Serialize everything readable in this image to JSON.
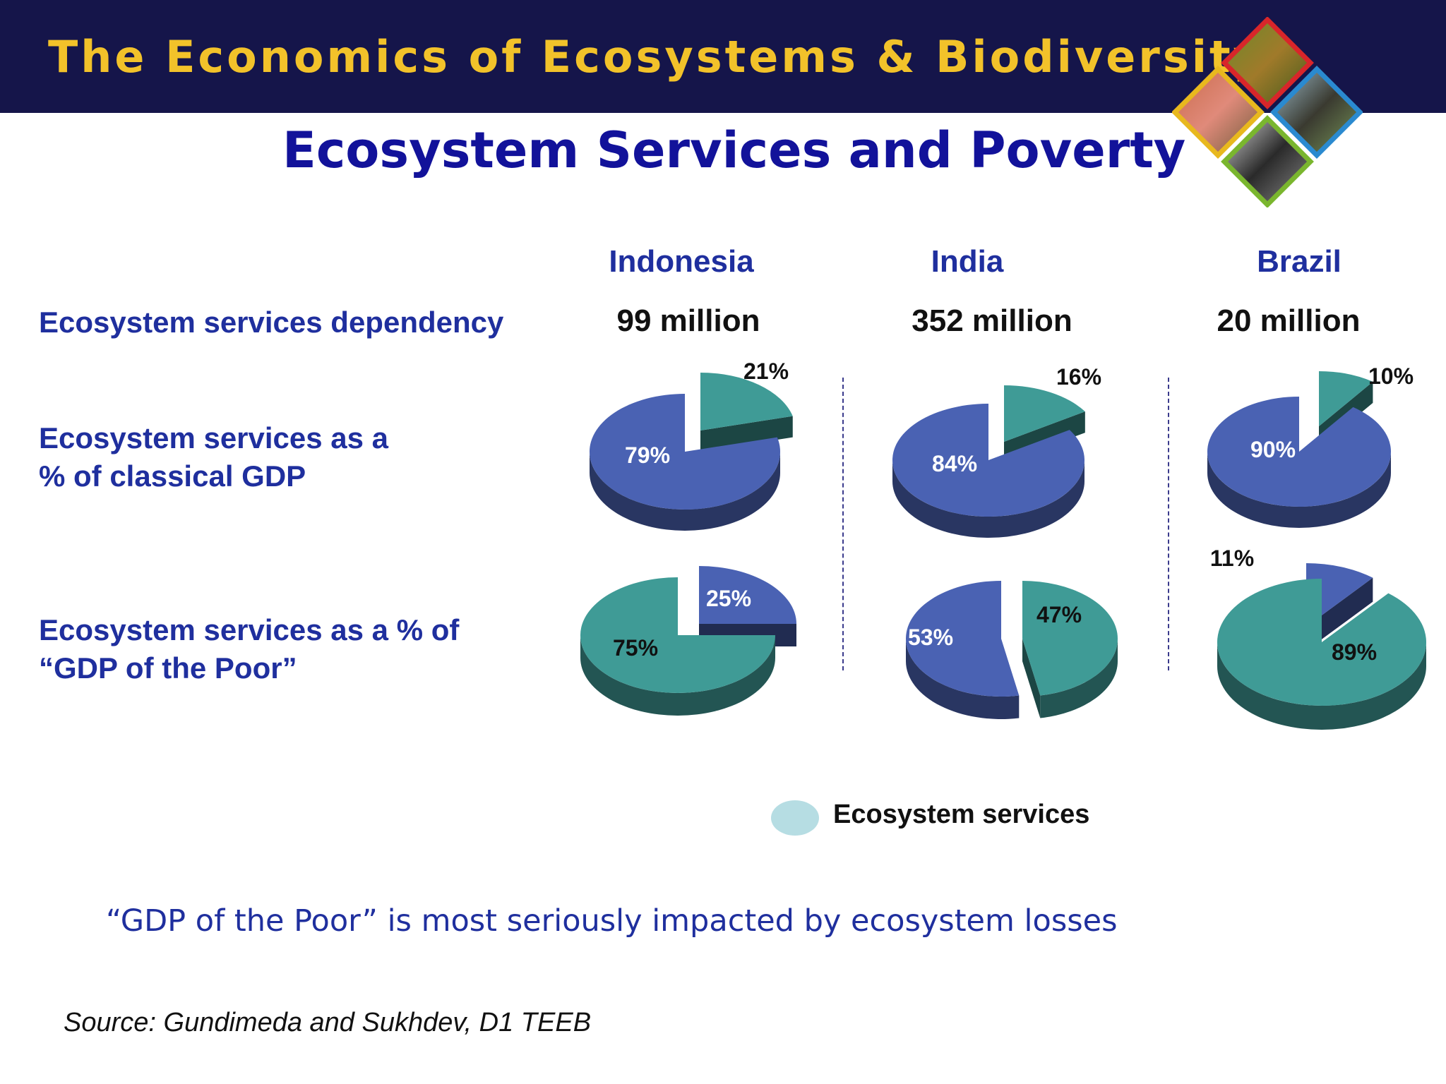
{
  "header": {
    "banner_title": "The Economics of Ecosystems & Biodiversity",
    "slide_title": "Ecosystem Services and Poverty"
  },
  "row_labels": {
    "dependency": "Ecosystem services dependency",
    "classical_gdp_line1": "Ecosystem services as a",
    "classical_gdp_line2": "%  of classical GDP",
    "poor_gdp_line1": "Ecosystem services as a  % of",
    "poor_gdp_line2": "“GDP of the Poor”"
  },
  "colors": {
    "ecosystem": "#3f9b96",
    "other": "#4a62b3",
    "legend_swatch": "#b6dde3",
    "banner": "#15154a",
    "banner_text": "#f2c22a",
    "title_text": "#12129a"
  },
  "chart_data": {
    "type": "pie",
    "legend": [
      "Ecosystem services"
    ],
    "countries": [
      "Indonesia",
      "India",
      "Brazil"
    ],
    "dependency": [
      "99 million",
      "352 million",
      "20 million"
    ],
    "classical_gdp": [
      {
        "country": "Indonesia",
        "ecosystem_services": 21,
        "other": 79
      },
      {
        "country": "India",
        "ecosystem_services": 16,
        "other": 84
      },
      {
        "country": "Brazil",
        "ecosystem_services": 10,
        "other": 90
      }
    ],
    "gdp_of_the_poor": [
      {
        "country": "Indonesia",
        "ecosystem_services": 75,
        "other": 25
      },
      {
        "country": "India",
        "ecosystem_services": 47,
        "other": 53
      },
      {
        "country": "Brazil",
        "ecosystem_services": 89,
        "other": 11
      }
    ]
  },
  "legend": {
    "label": "Ecosystem services"
  },
  "footer": {
    "note": "“GDP of the Poor” is most seriously impacted by ecosystem losses",
    "source": "Source: Gundimeda and Sukhdev, D1 TEEB"
  }
}
